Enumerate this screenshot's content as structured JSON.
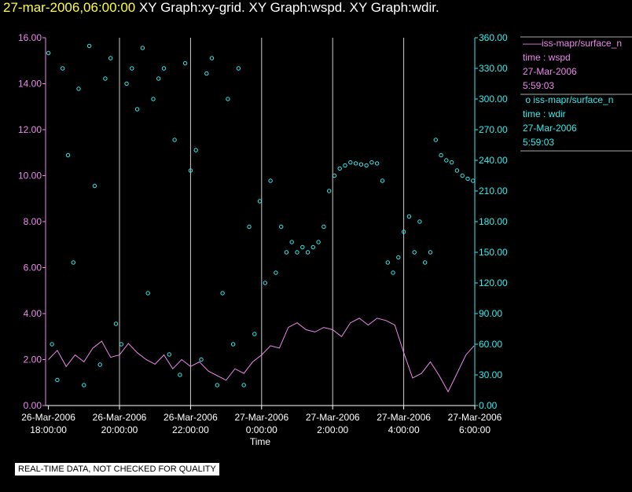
{
  "title": {
    "timestamp": "27-mar-2006,06:00:00",
    "graphs": "XY Graph:xy-grid.  XY Graph:wspd.  XY Graph:wdir."
  },
  "legend": {
    "wspd": {
      "series": "iss-mapr/surface_n",
      "line1": "time : wspd",
      "line2": "27-Mar-2006",
      "line3": "5:59:03"
    },
    "wdir": {
      "series": "iss-mapr/surface_n",
      "line1": "time : wdir",
      "line2": "27-Mar-2006",
      "line3": "5:59:03"
    }
  },
  "notice": "REAL-TIME DATA, NOT CHECKED FOR QUALITY",
  "colors": {
    "wspd": "#ee88ee",
    "wdir": "#33eeee",
    "grid": "#cccccc",
    "background": "#000000"
  },
  "chart_data": {
    "type": "line",
    "xlabel": "Time",
    "x_range_hours": [
      -12.08,
      0.0
    ],
    "x_ticks": [
      {
        "hour": -12,
        "date": "26-Mar-2006",
        "time": "18:00:00"
      },
      {
        "hour": -10,
        "date": "26-Mar-2006",
        "time": "20:00:00"
      },
      {
        "hour": -8,
        "date": "26-Mar-2006",
        "time": "22:00:00"
      },
      {
        "hour": -6,
        "date": "27-Mar-2006",
        "time": "0:00:00"
      },
      {
        "hour": -4,
        "date": "27-Mar-2006",
        "time": "2:00:00"
      },
      {
        "hour": -2,
        "date": "27-Mar-2006",
        "time": "4:00:00"
      },
      {
        "hour": 0,
        "date": "27-Mar-2006",
        "time": "6:00:00"
      }
    ],
    "left_axis": {
      "ylim": [
        0,
        16
      ],
      "ticks": [
        "0.00",
        "2.00",
        "4.00",
        "6.00",
        "8.00",
        "10.00",
        "12.00",
        "14.00",
        "16.00"
      ]
    },
    "right_axis": {
      "ylim": [
        0,
        360
      ],
      "ticks": [
        "0.00",
        "30.00",
        "60.00",
        "90.00",
        "120.00",
        "150.00",
        "180.00",
        "210.00",
        "240.00",
        "270.00",
        "300.00",
        "330.00",
        "360.00"
      ]
    },
    "series": [
      {
        "name": "wspd",
        "style": "line",
        "axis": "left",
        "x": [
          -12.0,
          -11.75,
          -11.5,
          -11.25,
          -11.0,
          -10.75,
          -10.5,
          -10.25,
          -10.0,
          -9.75,
          -9.5,
          -9.25,
          -9.0,
          -8.75,
          -8.5,
          -8.25,
          -8.0,
          -7.75,
          -7.5,
          -7.25,
          -7.0,
          -6.75,
          -6.5,
          -6.25,
          -6.0,
          -5.75,
          -5.5,
          -5.25,
          -5.0,
          -4.75,
          -4.5,
          -4.25,
          -4.0,
          -3.75,
          -3.5,
          -3.25,
          -3.0,
          -2.75,
          -2.5,
          -2.25,
          -2.0,
          -1.75,
          -1.5,
          -1.25,
          -1.0,
          -0.75,
          -0.5,
          -0.25,
          -0.02
        ],
        "values": [
          2.0,
          2.4,
          1.7,
          2.2,
          1.9,
          2.5,
          2.8,
          2.1,
          2.2,
          2.7,
          2.3,
          2.0,
          1.8,
          2.2,
          1.6,
          2.0,
          1.7,
          1.9,
          1.5,
          1.3,
          1.1,
          1.6,
          1.4,
          1.9,
          2.2,
          2.6,
          2.5,
          3.4,
          3.6,
          3.3,
          3.2,
          3.4,
          3.3,
          3.0,
          3.6,
          3.8,
          3.5,
          3.8,
          3.7,
          3.5,
          2.3,
          1.2,
          1.4,
          1.9,
          1.3,
          0.6,
          1.4,
          2.2,
          2.6
        ]
      },
      {
        "name": "wdir",
        "style": "scatter",
        "axis": "right",
        "x": [
          -12.0,
          -11.9,
          -11.75,
          -11.6,
          -11.45,
          -11.3,
          -11.15,
          -11.0,
          -10.85,
          -10.7,
          -10.55,
          -10.4,
          -10.25,
          -10.1,
          -9.95,
          -9.8,
          -9.65,
          -9.5,
          -9.35,
          -9.2,
          -9.05,
          -8.9,
          -8.75,
          -8.6,
          -8.45,
          -8.3,
          -8.15,
          -8.0,
          -7.85,
          -7.7,
          -7.55,
          -7.4,
          -7.25,
          -7.1,
          -6.95,
          -6.8,
          -6.65,
          -6.5,
          -6.35,
          -6.2,
          -6.05,
          -5.9,
          -5.75,
          -5.6,
          -5.45,
          -5.3,
          -5.15,
          -5.0,
          -4.85,
          -4.7,
          -4.55,
          -4.4,
          -4.25,
          -4.1,
          -3.95,
          -3.8,
          -3.65,
          -3.5,
          -3.35,
          -3.2,
          -3.05,
          -2.9,
          -2.75,
          -2.6,
          -2.45,
          -2.3,
          -2.15,
          -2.0,
          -1.85,
          -1.7,
          -1.55,
          -1.4,
          -1.25,
          -1.1,
          -0.95,
          -0.8,
          -0.65,
          -0.5,
          -0.35,
          -0.2,
          -0.05
        ],
        "values": [
          345,
          60,
          25,
          330,
          245,
          140,
          310,
          20,
          352,
          215,
          40,
          320,
          340,
          80,
          60,
          315,
          330,
          290,
          350,
          110,
          300,
          320,
          330,
          50,
          260,
          30,
          335,
          230,
          250,
          45,
          325,
          340,
          20,
          110,
          300,
          60,
          330,
          20,
          175,
          70,
          200,
          120,
          220,
          130,
          175,
          150,
          160,
          150,
          155,
          150,
          155,
          160,
          175,
          210,
          225,
          232,
          235,
          238,
          237,
          236,
          235,
          238,
          237,
          220,
          140,
          130,
          145,
          170,
          185,
          150,
          180,
          140,
          150,
          260,
          245,
          240,
          238,
          230,
          225,
          222,
          220
        ]
      }
    ]
  }
}
